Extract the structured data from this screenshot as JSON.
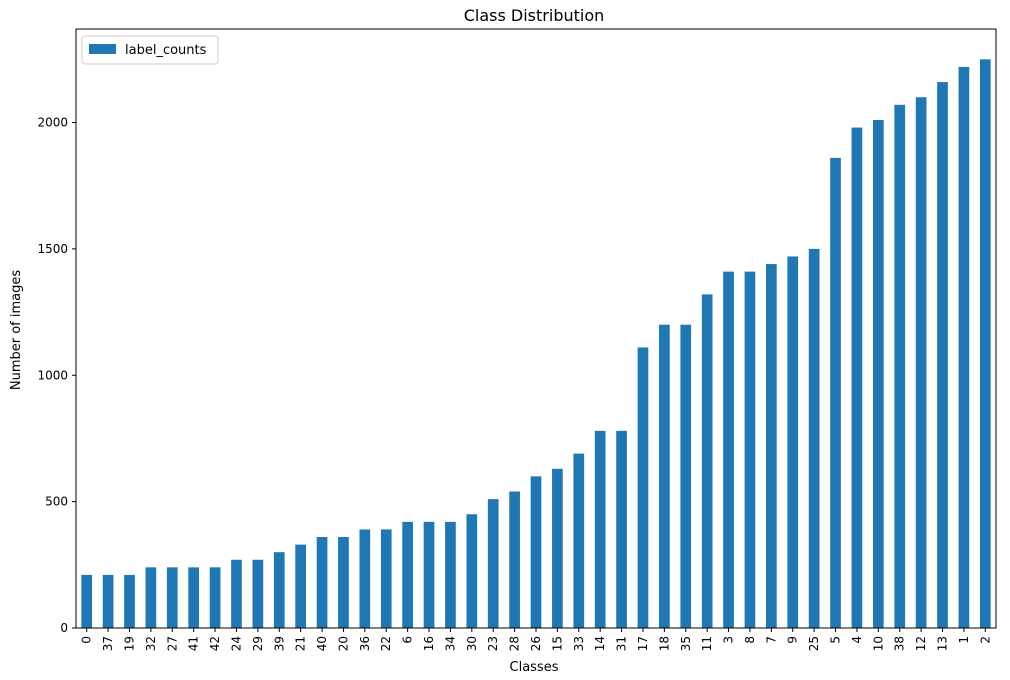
{
  "chart_data": {
    "type": "bar",
    "title": "Class Distribution",
    "xlabel": "Classes",
    "ylabel": "Number of images",
    "ylim": [
      0,
      2370
    ],
    "yticks": [
      0,
      500,
      1000,
      1500,
      2000
    ],
    "legend_position": "top-left",
    "grid": false,
    "color": "#1f77b4",
    "categories": [
      "0",
      "37",
      "19",
      "32",
      "27",
      "41",
      "42",
      "24",
      "29",
      "39",
      "21",
      "40",
      "20",
      "36",
      "22",
      "6",
      "16",
      "34",
      "30",
      "23",
      "28",
      "26",
      "15",
      "33",
      "14",
      "31",
      "17",
      "18",
      "35",
      "11",
      "3",
      "8",
      "7",
      "9",
      "25",
      "5",
      "4",
      "10",
      "38",
      "12",
      "13",
      "1",
      "2"
    ],
    "series": [
      {
        "name": "label_counts",
        "values": [
          210,
          210,
          210,
          240,
          240,
          240,
          240,
          270,
          270,
          300,
          330,
          360,
          360,
          390,
          390,
          420,
          420,
          420,
          450,
          510,
          540,
          600,
          630,
          690,
          780,
          780,
          1110,
          1200,
          1200,
          1320,
          1410,
          1410,
          1440,
          1470,
          1500,
          1860,
          1980,
          2010,
          2070,
          2100,
          2160,
          2220,
          2250
        ]
      }
    ]
  }
}
